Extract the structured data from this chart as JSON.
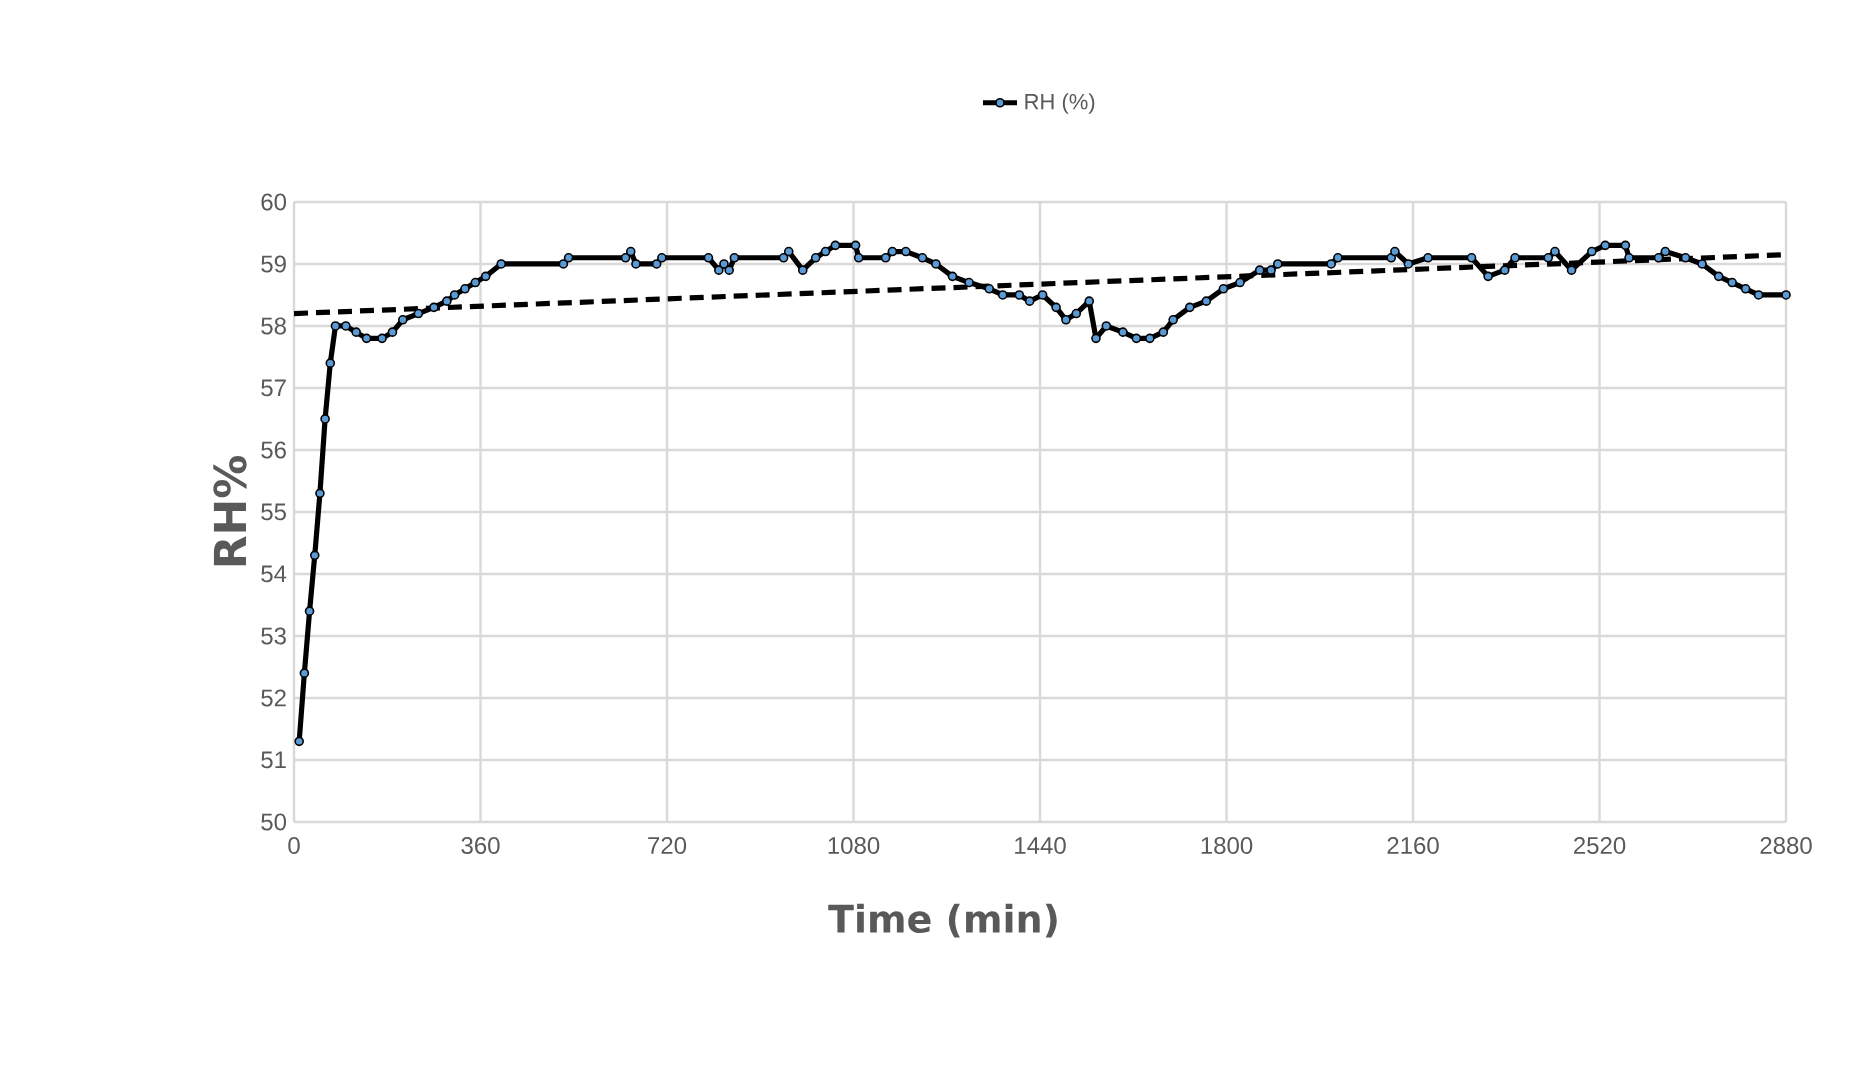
{
  "chart_data": {
    "type": "line",
    "xlabel": "Time (min)",
    "ylabel": "RH%",
    "xlim": [
      0,
      2880
    ],
    "ylim": [
      50,
      60
    ],
    "xticks": [
      0,
      360,
      720,
      1080,
      1440,
      1800,
      2160,
      2520,
      2880
    ],
    "yticks": [
      50,
      51,
      52,
      53,
      54,
      55,
      56,
      57,
      58,
      59,
      60
    ],
    "grid": true,
    "legend": "top",
    "series": [
      {
        "name": "RH (%)",
        "color": "#000000",
        "marker": "circle",
        "line_style": "solid",
        "x": [
          10,
          20,
          30,
          40,
          50,
          60,
          70,
          80,
          100,
          120,
          140,
          170,
          190,
          210,
          240,
          270,
          295,
          310,
          330,
          350,
          370,
          400,
          520,
          530,
          640,
          650,
          660,
          700,
          710,
          800,
          820,
          830,
          840,
          850,
          945,
          955,
          982,
          1007,
          1026,
          1045,
          1084,
          1090,
          1142,
          1155,
          1181,
          1213,
          1239,
          1271,
          1303,
          1342,
          1368,
          1400,
          1420,
          1445,
          1471,
          1490,
          1510,
          1535,
          1548,
          1568,
          1600,
          1626,
          1652,
          1678,
          1697,
          1729,
          1761,
          1794,
          1826,
          1864,
          1886,
          1899,
          2002,
          2015,
          2118,
          2125,
          2151,
          2189,
          2273,
          2305,
          2337,
          2357,
          2421,
          2434,
          2466,
          2505,
          2531,
          2570,
          2577,
          2634,
          2647,
          2686,
          2718,
          2750,
          2776,
          2802,
          2827,
          2880
        ],
        "values": [
          51.3,
          52.4,
          53.4,
          54.3,
          55.3,
          56.5,
          57.4,
          58.0,
          58.0,
          57.9,
          57.8,
          57.8,
          57.9,
          58.1,
          58.2,
          58.3,
          58.4,
          58.5,
          58.6,
          58.7,
          58.8,
          59.0,
          59.0,
          59.1,
          59.1,
          59.2,
          59.0,
          59.0,
          59.1,
          59.1,
          58.9,
          59.0,
          58.9,
          59.1,
          59.1,
          59.2,
          58.9,
          59.1,
          59.2,
          59.3,
          59.3,
          59.1,
          59.1,
          59.2,
          59.2,
          59.1,
          59.0,
          58.8,
          58.7,
          58.6,
          58.5,
          58.5,
          58.4,
          58.5,
          58.3,
          58.1,
          58.2,
          58.4,
          57.8,
          58.0,
          57.9,
          57.8,
          57.8,
          57.9,
          58.1,
          58.3,
          58.4,
          58.6,
          58.7,
          58.9,
          58.9,
          59.0,
          59.0,
          59.1,
          59.1,
          59.2,
          59.0,
          59.1,
          59.1,
          58.8,
          58.9,
          59.1,
          59.1,
          59.2,
          58.9,
          59.2,
          59.3,
          59.3,
          59.1,
          59.1,
          59.2,
          59.1,
          59.0,
          58.8,
          58.7,
          58.6,
          58.5,
          58.5
        ]
      },
      {
        "color": "#000000",
        "marker": "none",
        "line_style": "dashed",
        "x": [
          0,
          2880
        ],
        "values": [
          58.2,
          59.15
        ]
      }
    ]
  }
}
